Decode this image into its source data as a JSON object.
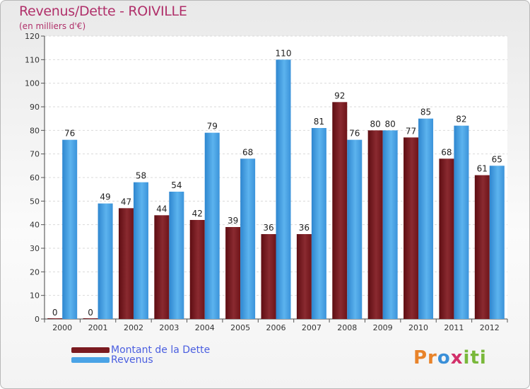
{
  "chart_data": {
    "type": "bar",
    "title": "Revenus/Dette - ROIVILLE",
    "subtitle": "(en milliers d'€)",
    "xlabel": "",
    "ylabel": "",
    "ylim": [
      0,
      120
    ],
    "yticks": [
      0,
      10,
      20,
      30,
      40,
      50,
      60,
      70,
      80,
      90,
      100,
      110,
      120
    ],
    "grid": true,
    "categories": [
      "2000",
      "2001",
      "2002",
      "2003",
      "2004",
      "2005",
      "2006",
      "2007",
      "2008",
      "2009",
      "2010",
      "2011",
      "2012"
    ],
    "series": [
      {
        "name": "Montant de la Dette",
        "color": "#7a1a20",
        "values": [
          0,
          0,
          47,
          44,
          42,
          39,
          36,
          36,
          92,
          80,
          77,
          68,
          61
        ]
      },
      {
        "name": "Revenus",
        "color": "#4aa3e6",
        "values": [
          76,
          49,
          58,
          54,
          79,
          68,
          110,
          81,
          76,
          80,
          85,
          82,
          65
        ]
      }
    ],
    "legend": "bottom-left"
  },
  "logo": {
    "text_parts": [
      "Pr",
      "o",
      "x",
      "iti"
    ]
  }
}
